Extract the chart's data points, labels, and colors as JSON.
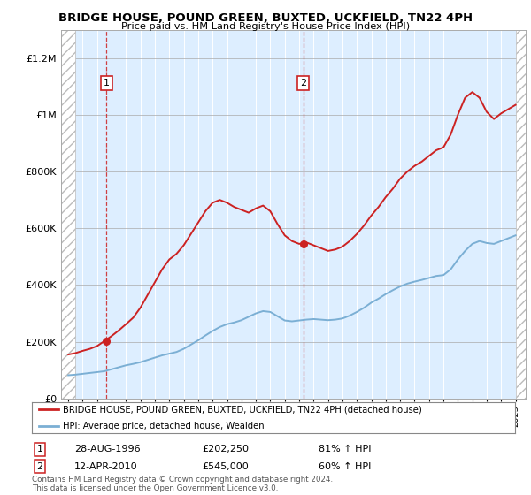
{
  "title": "BRIDGE HOUSE, POUND GREEN, BUXTED, UCKFIELD, TN22 4PH",
  "subtitle": "Price paid vs. HM Land Registry's House Price Index (HPI)",
  "legend_line1": "BRIDGE HOUSE, POUND GREEN, BUXTED, UCKFIELD, TN22 4PH (detached house)",
  "legend_line2": "HPI: Average price, detached house, Wealden",
  "footnote": "Contains HM Land Registry data © Crown copyright and database right 2024.\nThis data is licensed under the Open Government Licence v3.0.",
  "sale1_date": "28-AUG-1996",
  "sale1_price": "£202,250",
  "sale1_hpi": "81% ↑ HPI",
  "sale1_x": 1996.65,
  "sale1_y": 202250,
  "sale2_date": "12-APR-2010",
  "sale2_price": "£545,000",
  "sale2_hpi": "60% ↑ HPI",
  "sale2_x": 2010.28,
  "sale2_y": 545000,
  "hpi_color": "#7bafd4",
  "price_color": "#cc2222",
  "bg_color": "#ddeeff",
  "ylim": [
    0,
    1300000
  ],
  "xlim_start": 1993.5,
  "xlim_end": 2025.7,
  "hatch_left_end": 1994.5,
  "hatch_right_start": 2025.0,
  "years_hpi": [
    1994,
    1994.5,
    1995,
    1995.5,
    1996,
    1996.5,
    1997,
    1997.5,
    1998,
    1998.5,
    1999,
    1999.5,
    2000,
    2000.5,
    2001,
    2001.5,
    2002,
    2002.5,
    2003,
    2003.5,
    2004,
    2004.5,
    2005,
    2005.5,
    2006,
    2006.5,
    2007,
    2007.5,
    2008,
    2008.5,
    2009,
    2009.5,
    2010,
    2010.5,
    2011,
    2011.5,
    2012,
    2012.5,
    2013,
    2013.5,
    2014,
    2014.5,
    2015,
    2015.5,
    2016,
    2016.5,
    2017,
    2017.5,
    2018,
    2018.5,
    2019,
    2019.5,
    2020,
    2020.5,
    2021,
    2021.5,
    2022,
    2022.5,
    2023,
    2023.5,
    2024,
    2024.5,
    2025
  ],
  "hpi_values": [
    82000,
    84000,
    87000,
    90000,
    93000,
    96000,
    103000,
    110000,
    117000,
    122000,
    128000,
    136000,
    144000,
    152000,
    158000,
    164000,
    175000,
    190000,
    205000,
    222000,
    238000,
    252000,
    262000,
    268000,
    276000,
    288000,
    300000,
    308000,
    305000,
    290000,
    275000,
    272000,
    275000,
    278000,
    280000,
    278000,
    276000,
    278000,
    282000,
    292000,
    305000,
    320000,
    338000,
    352000,
    368000,
    382000,
    395000,
    405000,
    412000,
    418000,
    425000,
    432000,
    435000,
    455000,
    490000,
    520000,
    545000,
    555000,
    548000,
    545000,
    555000,
    565000,
    575000
  ],
  "years_price": [
    1994,
    1994.5,
    1995,
    1995.5,
    1996,
    1996.5,
    1997,
    1997.5,
    1998,
    1998.5,
    1999,
    1999.5,
    2000,
    2000.5,
    2001,
    2001.5,
    2002,
    2002.5,
    2003,
    2003.5,
    2004,
    2004.5,
    2005,
    2005.5,
    2006,
    2006.5,
    2007,
    2007.5,
    2008,
    2008.5,
    2009,
    2009.5,
    2010,
    2010.5,
    2011,
    2011.5,
    2012,
    2012.5,
    2013,
    2013.5,
    2014,
    2014.5,
    2015,
    2015.5,
    2016,
    2016.5,
    2017,
    2017.5,
    2018,
    2018.5,
    2019,
    2019.5,
    2020,
    2020.5,
    2021,
    2021.5,
    2022,
    2022.5,
    2023,
    2023.5,
    2024,
    2024.5,
    2025
  ],
  "price_values": [
    155000,
    160000,
    168000,
    175000,
    185000,
    202250,
    220000,
    240000,
    262000,
    285000,
    320000,
    365000,
    410000,
    455000,
    490000,
    510000,
    540000,
    580000,
    620000,
    660000,
    690000,
    700000,
    690000,
    675000,
    665000,
    655000,
    670000,
    680000,
    660000,
    615000,
    575000,
    555000,
    545000,
    550000,
    540000,
    530000,
    520000,
    525000,
    535000,
    555000,
    580000,
    610000,
    645000,
    675000,
    710000,
    740000,
    775000,
    800000,
    820000,
    835000,
    855000,
    875000,
    885000,
    930000,
    1000000,
    1060000,
    1080000,
    1060000,
    1010000,
    985000,
    1005000,
    1020000,
    1035000
  ]
}
